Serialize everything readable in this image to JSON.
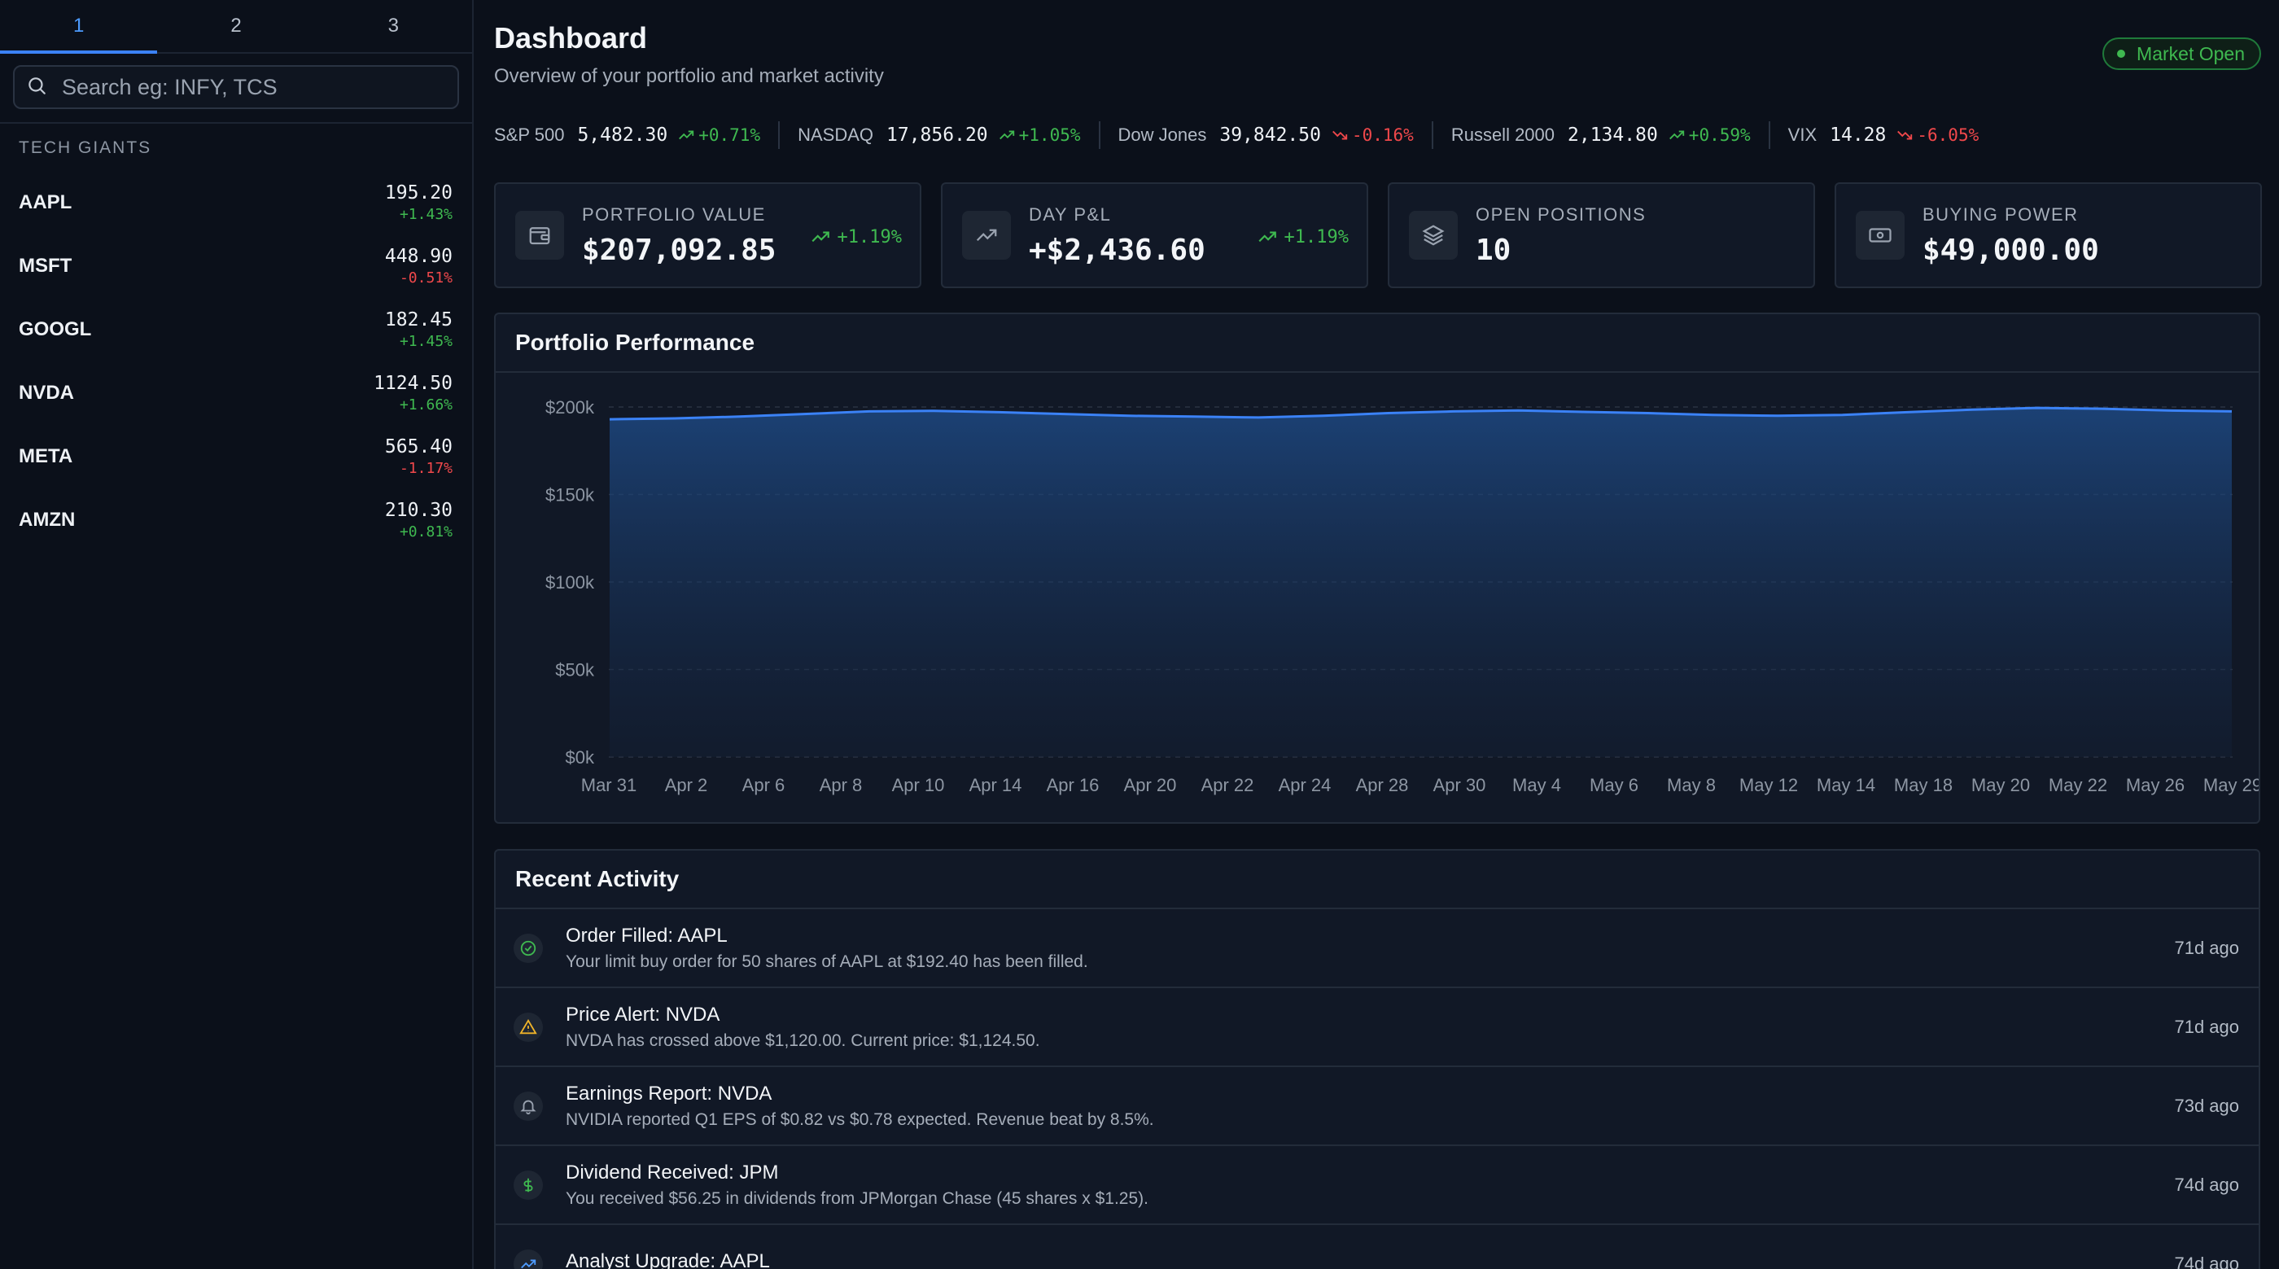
{
  "sidebar": {
    "tabs": [
      "1",
      "2",
      "3"
    ],
    "search_placeholder": "Search eg: INFY, TCS",
    "group_label": "TECH GIANTS",
    "watchlist": [
      {
        "symbol": "AAPL",
        "price": "195.20",
        "change": "+1.43%",
        "dir": "up"
      },
      {
        "symbol": "MSFT",
        "price": "448.90",
        "change": "-0.51%",
        "dir": "down"
      },
      {
        "symbol": "GOOGL",
        "price": "182.45",
        "change": "+1.45%",
        "dir": "up"
      },
      {
        "symbol": "NVDA",
        "price": "1124.50",
        "change": "+1.66%",
        "dir": "up"
      },
      {
        "symbol": "META",
        "price": "565.40",
        "change": "-1.17%",
        "dir": "down"
      },
      {
        "symbol": "AMZN",
        "price": "210.30",
        "change": "+0.81%",
        "dir": "up"
      }
    ]
  },
  "header": {
    "title": "Dashboard",
    "subtitle": "Overview of your portfolio and market activity",
    "market_status": "Market Open"
  },
  "ticker": [
    {
      "name": "S&P 500",
      "value": "5,482.30",
      "change": "+0.71%",
      "dir": "up"
    },
    {
      "name": "NASDAQ",
      "value": "17,856.20",
      "change": "+1.05%",
      "dir": "up"
    },
    {
      "name": "Dow Jones",
      "value": "39,842.50",
      "change": "-0.16%",
      "dir": "down"
    },
    {
      "name": "Russell 2000",
      "value": "2,134.80",
      "change": "+0.59%",
      "dir": "up"
    },
    {
      "name": "VIX",
      "value": "14.28",
      "change": "-6.05%",
      "dir": "down"
    }
  ],
  "stats": [
    {
      "label": "PORTFOLIO VALUE",
      "value": "$207,092.85",
      "change": "+1.19%",
      "icon": "wallet-icon"
    },
    {
      "label": "DAY P&L",
      "value": "+$2,436.60",
      "change": "+1.19%",
      "icon": "trending-up-icon"
    },
    {
      "label": "OPEN POSITIONS",
      "value": "10",
      "change": "",
      "icon": "layers-icon"
    },
    {
      "label": "BUYING POWER",
      "value": "$49,000.00",
      "change": "",
      "icon": "banknote-icon"
    }
  ],
  "performance": {
    "title": "Portfolio Performance"
  },
  "chart_data": {
    "type": "area",
    "title": "Portfolio Performance",
    "xlabel": "",
    "ylabel": "",
    "ylim": [
      0,
      200000
    ],
    "y_ticks": [
      "$0k",
      "$50k",
      "$100k",
      "$150k",
      "$200k"
    ],
    "x_tick_labels": [
      "Mar 31",
      "Apr 2",
      "Apr 6",
      "Apr 8",
      "Apr 10",
      "Apr 14",
      "Apr 16",
      "Apr 20",
      "Apr 22",
      "Apr 24",
      "Apr 28",
      "Apr 30",
      "May 4",
      "May 6",
      "May 8",
      "May 12",
      "May 14",
      "May 18",
      "May 20",
      "May 22",
      "May 26",
      "May 29"
    ],
    "grid": true,
    "series": [
      {
        "values": [
          193000,
          193500,
          194500,
          196000,
          197500,
          197800,
          197000,
          196000,
          195000,
          194500,
          194000,
          195000,
          196500,
          197500,
          198000,
          197200,
          196500,
          195500,
          195000,
          195500,
          197000,
          198500,
          199500,
          199000,
          198000,
          197500
        ]
      }
    ],
    "color": "#3b82f6"
  },
  "activity": {
    "title": "Recent Activity",
    "items": [
      {
        "title": "Order Filled: AAPL",
        "desc": "Your limit buy order for 50 shares of AAPL at $192.40 has been filled.",
        "time": "71d ago",
        "icon": "check-circle-icon"
      },
      {
        "title": "Price Alert: NVDA",
        "desc": "NVDA has crossed above $1,120.00. Current price: $1,124.50.",
        "time": "71d ago",
        "icon": "warning-icon"
      },
      {
        "title": "Earnings Report: NVDA",
        "desc": "NVIDIA reported Q1 EPS of $0.82 vs $0.78 expected. Revenue beat by 8.5%.",
        "time": "73d ago",
        "icon": "bell-icon"
      },
      {
        "title": "Dividend Received: JPM",
        "desc": "You received $56.25 in dividends from JPMorgan Chase (45 shares x $1.25).",
        "time": "74d ago",
        "icon": "dollar-icon"
      },
      {
        "title": "Analyst Upgrade: AAPL",
        "desc": "",
        "time": "74d ago",
        "icon": "trending-up-icon"
      }
    ]
  }
}
